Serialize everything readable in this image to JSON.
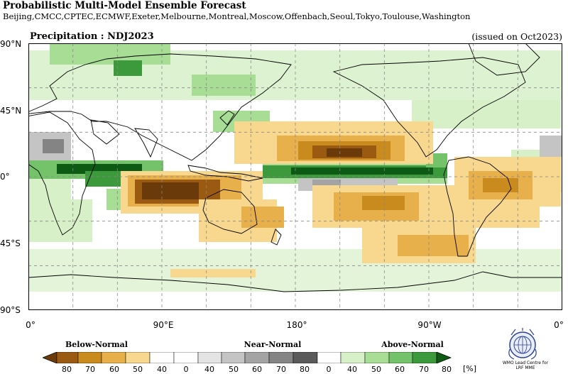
{
  "header": {
    "title": "Probabilistic Multi-Model Ensemble Forecast",
    "centres": "Beijing,CMCC,CPTEC,ECMWF,Exeter,Melbourne,Montreal,Moscow,Offenbach,Seoul,Tokyo,Toulouse,Washington",
    "variable": "Precipitation : NDJ2023",
    "issued": "(issued on Oct2023)"
  },
  "map": {
    "projection": "equirectangular",
    "lon_range": [
      0,
      360
    ],
    "lat_range": [
      -90,
      90
    ],
    "lat_labels": [
      "90°N",
      "45°N",
      "0°",
      "45°S",
      "90°S"
    ],
    "lon_labels": [
      "0°",
      "90°E",
      "180°",
      "90°W",
      "0°"
    ],
    "grid": "dashed"
  },
  "legend": {
    "categories": [
      "Below-Normal",
      "Near-Normal",
      "Above-Normal"
    ],
    "ticks": [
      "80",
      "70",
      "60",
      "50",
      "40",
      "0",
      "40",
      "50",
      "60",
      "70",
      "80",
      "0",
      "40",
      "50",
      "60",
      "70",
      "80"
    ],
    "unit": "[%]",
    "colors": {
      "below_80": "#6b3a0a",
      "below_70": "#9a5a12",
      "below_60": "#c98a1e",
      "below_50": "#e8b04a",
      "below_40": "#f7d88e",
      "normal": "#ffffff",
      "near_40": "#e4e4e4",
      "near_50": "#c4c4c4",
      "near_60": "#a4a4a4",
      "near_70": "#848484",
      "near_80": "#5a5a5a",
      "above_40": "#d7f0c8",
      "above_50": "#a8dd96",
      "above_60": "#74c26a",
      "above_70": "#3c9a3c",
      "above_80": "#0c5a14"
    }
  },
  "logo": {
    "icon": "wmo-emblem-icon",
    "text_1": "WMO Lead Centre for",
    "text_2": "LRF MME"
  }
}
